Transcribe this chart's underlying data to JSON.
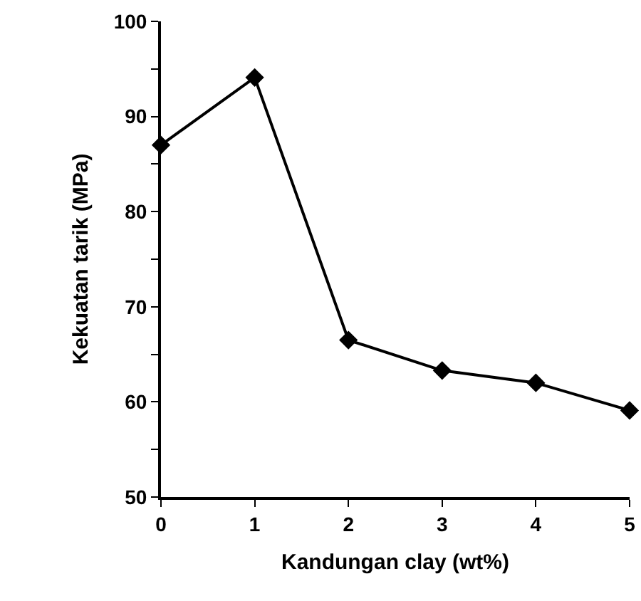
{
  "chart_data": {
    "type": "line",
    "xlabel": "Kandungan clay (wt%)",
    "ylabel": "Kekuatan tarik (MPa)",
    "x": [
      0,
      1,
      2,
      3,
      4,
      5
    ],
    "series": [
      {
        "color": "#000000",
        "values": [
          87.0,
          94.1,
          66.5,
          63.3,
          62.0,
          59.1
        ]
      }
    ],
    "xlim": [
      0,
      5
    ],
    "xticks": [
      0,
      1,
      2,
      3,
      4,
      5
    ],
    "ylim": [
      50,
      100
    ],
    "yticks": [
      50,
      {
        "value": 55,
        "label": null
      },
      60,
      {
        "value": 65,
        "label": null
      },
      70,
      {
        "value": 75,
        "label": null
      },
      80,
      {
        "value": 85,
        "label": null
      },
      90,
      {
        "value": 95,
        "label": null
      },
      100
    ],
    "marker": "diamond",
    "line_style": "solid"
  }
}
